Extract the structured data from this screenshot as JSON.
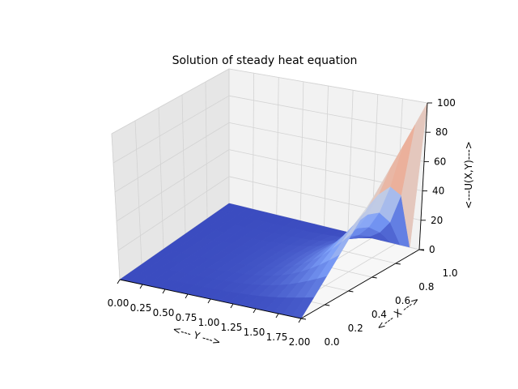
{
  "chart_data": {
    "type": "surface3d",
    "title": "Solution of steady heat equation",
    "xlabel": "<--- Y --->",
    "ylabel": "<--- X --->",
    "zlabel": "<---U(X,Y)--->",
    "y_axis_range": [
      0,
      2
    ],
    "x_axis_range": [
      0,
      1
    ],
    "z_axis_range": [
      0,
      100
    ],
    "y_ticks": [
      "0.00",
      "0.25",
      "0.50",
      "0.75",
      "1.00",
      "1.25",
      "1.50",
      "1.75",
      "2.00"
    ],
    "x_ticks": [
      "0.0",
      "0.2",
      "0.4",
      "0.6",
      "0.8",
      "1.0"
    ],
    "z_ticks": [
      "0",
      "20",
      "40",
      "60",
      "80",
      "100"
    ],
    "colormap": "coolwarm",
    "grid": true,
    "boundary_condition": {
      "edge": "Y = 2",
      "profile": "U rises from 0 at X = 0 to 100 at X = 1"
    },
    "colors": {
      "cool": "#3b4cc0",
      "neutral": "#dddddd",
      "warm": "#b40426"
    }
  }
}
